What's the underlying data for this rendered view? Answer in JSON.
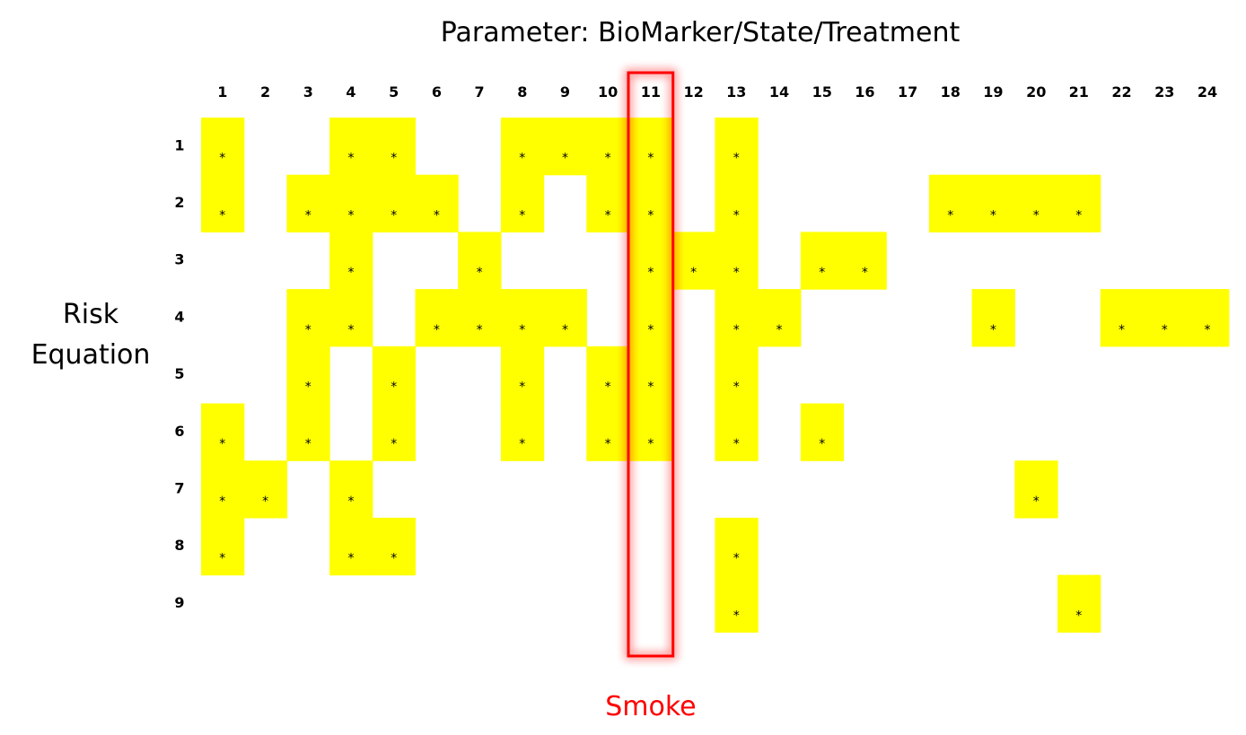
{
  "chart_data": {
    "type": "heatmap",
    "title": "Parameter: BioMarker/State/Treatment",
    "xlabel": "",
    "ylabel_lines": [
      "Risk",
      "Equation"
    ],
    "x_categories": [
      "1",
      "2",
      "3",
      "4",
      "5",
      "6",
      "7",
      "8",
      "9",
      "10",
      "11",
      "12",
      "13",
      "14",
      "15",
      "16",
      "17",
      "18",
      "19",
      "20",
      "21",
      "22",
      "23",
      "24"
    ],
    "y_categories": [
      "1",
      "2",
      "3",
      "4",
      "5",
      "6",
      "7",
      "8",
      "9"
    ],
    "cell_marker": "*",
    "cells": [
      {
        "row": 1,
        "cols": [
          1,
          4,
          5,
          8,
          9,
          10,
          11,
          13
        ]
      },
      {
        "row": 2,
        "cols": [
          1,
          3,
          4,
          5,
          6,
          8,
          10,
          11,
          13,
          18,
          19,
          20,
          21
        ]
      },
      {
        "row": 3,
        "cols": [
          4,
          7,
          11,
          12,
          13,
          15,
          16
        ]
      },
      {
        "row": 4,
        "cols": [
          3,
          4,
          6,
          7,
          8,
          9,
          11,
          13,
          14,
          19,
          22,
          23,
          24
        ]
      },
      {
        "row": 5,
        "cols": [
          3,
          5,
          8,
          10,
          11,
          13
        ]
      },
      {
        "row": 6,
        "cols": [
          1,
          3,
          5,
          8,
          10,
          11,
          13,
          15
        ]
      },
      {
        "row": 7,
        "cols": [
          1,
          2,
          4,
          20
        ]
      },
      {
        "row": 8,
        "cols": [
          1,
          4,
          5,
          13
        ]
      },
      {
        "row": 9,
        "cols": [
          13,
          21
        ]
      }
    ],
    "highlight": {
      "column": 11,
      "label": "Smoke",
      "color": "#ff0000"
    },
    "colors": {
      "cell": "#ffff00",
      "background": "#ffffff"
    },
    "grid": false,
    "legend": "none"
  }
}
